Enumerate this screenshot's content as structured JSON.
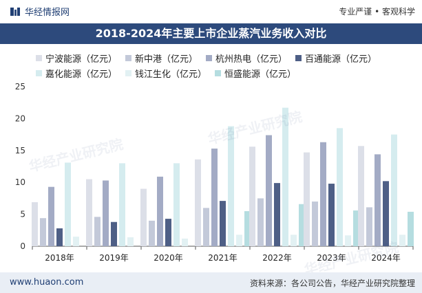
{
  "header": {
    "brand": "华经情报网",
    "slogan": "专业严谨 • 客观科学"
  },
  "title": "2018-2024年主要上市企业蒸汽业务收入对比",
  "footer": {
    "site": "www.huaon.com",
    "source": "资料来源：各公司公告，华经产业研究院整理"
  },
  "watermark": "华经产业研究院",
  "chart_data": {
    "type": "bar",
    "title": "2018-2024年主要上市企业蒸汽业务收入对比",
    "categories": [
      "2018年",
      "2019年",
      "2020年",
      "2021年",
      "2022年",
      "2023年",
      "2024年"
    ],
    "ylim": [
      0,
      25
    ],
    "yticks": [
      0,
      5,
      10,
      15,
      20,
      25
    ],
    "grid": false,
    "legend_position": "top",
    "series": [
      {
        "name": "宁波能源（亿元）",
        "color": "#dcdfe8",
        "values": [
          6.9,
          10.5,
          9.0,
          13.6,
          15.6,
          14.7,
          15.7
        ]
      },
      {
        "name": "新中港（亿元）",
        "color": "#c3c9d9",
        "values": [
          4.4,
          4.6,
          4.0,
          6.0,
          7.5,
          7.0,
          6.1
        ]
      },
      {
        "name": "杭州热电（亿元）",
        "color": "#a3abc5",
        "values": [
          9.3,
          10.3,
          10.9,
          15.3,
          17.4,
          16.3,
          14.4
        ]
      },
      {
        "name": "百通能源（亿元）",
        "color": "#4e5f86",
        "values": [
          2.8,
          3.8,
          4.3,
          7.1,
          9.9,
          9.8,
          10.2
        ]
      },
      {
        "name": "嘉化能源（亿元）",
        "color": "#d5ecef",
        "values": [
          13.1,
          13.0,
          13.0,
          18.8,
          21.7,
          18.5,
          17.5
        ]
      },
      {
        "name": "钱江生化（亿元）",
        "color": "#e2f1f3",
        "values": [
          1.5,
          1.4,
          1.2,
          1.8,
          1.8,
          1.7,
          1.8
        ]
      },
      {
        "name": "恒盛能源（亿元）",
        "color": "#b5dde0",
        "values": [
          0,
          0,
          0,
          5.5,
          6.6,
          5.6,
          5.4
        ]
      }
    ]
  }
}
